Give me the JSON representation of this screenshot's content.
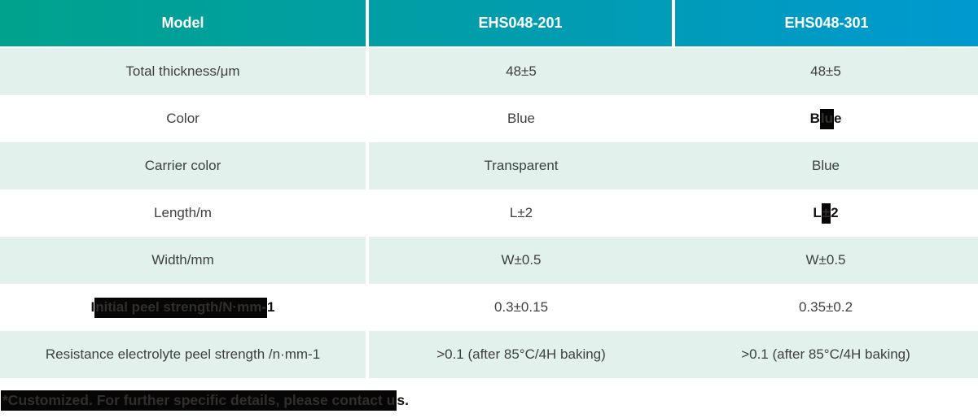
{
  "colors": {
    "header_gradient_start": "#00a28d",
    "header_gradient_end": "#0099d0",
    "row_alt_background": "#e2f1ec",
    "body_text": "#3f3f3f",
    "header_text": "#ffffff",
    "redaction_background": "#070606"
  },
  "header": {
    "model": "Model",
    "product1": "EHS048-201",
    "product2": "EHS048-301"
  },
  "rows": [
    {
      "label": "Total thickness/μm",
      "v1": "48±5",
      "v2": "48±5"
    },
    {
      "label": "Color",
      "v1": "Blue",
      "v2": {
        "pre": "B",
        "hl": "lu",
        "post": "e"
      }
    },
    {
      "label": "Carrier color",
      "v1": "Transparent",
      "v2": "Blue"
    },
    {
      "label": "Length/m",
      "v1": "L±2",
      "v2": {
        "pre": "L",
        "hl": "±",
        "post": "2"
      }
    },
    {
      "label": "Width/mm",
      "v1": "W±0.5",
      "v2": "W±0.5"
    },
    {
      "label": {
        "pre": "I",
        "hl": "nitial peel strength/N·mm-",
        "post": "1"
      },
      "v1": "0.3±0.15",
      "v2": "0.35±0.2"
    },
    {
      "label": "Resistance electrolyte peel strength /n·mm-1",
      "v1": ">0.1 (after 85°C/4H baking)",
      "v2": ">0.1 (after 85°C/4H baking)"
    }
  ],
  "footnote": {
    "hl": "*Customized. For further specific details, please contact u",
    "post": "s."
  }
}
